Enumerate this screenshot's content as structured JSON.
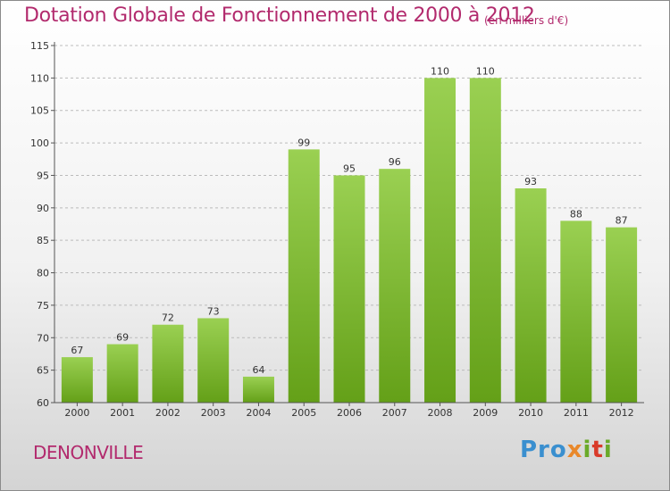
{
  "title": "Dotation Globale de Fonctionnement de 2000 à 2012",
  "subtitle": "(en milliers d'€)",
  "commune": "DENONVILLE",
  "brand": {
    "name": "Proxiti",
    "colors": [
      "#3a8fcf",
      "#e9882a",
      "#6aaa2a",
      "#d93a2a"
    ]
  },
  "colors": {
    "bar_top": "#9ad052",
    "bar_bottom": "#64a018",
    "text_accent": "#b22a6d",
    "axis": "#555555",
    "grid": "#bbbbbb"
  },
  "chart_data": {
    "type": "bar",
    "title": "Dotation Globale de Fonctionnement de 2000 à 2012",
    "subtitle": "(en milliers d'€)",
    "xlabel": "",
    "ylabel": "",
    "categories": [
      "2000",
      "2001",
      "2002",
      "2003",
      "2004",
      "2005",
      "2006",
      "2007",
      "2008",
      "2009",
      "2010",
      "2011",
      "2012"
    ],
    "values": [
      67,
      69,
      72,
      73,
      64,
      99,
      95,
      96,
      110,
      110,
      93,
      88,
      87
    ],
    "data_labels": [
      "67",
      "69",
      "72",
      "73",
      "64",
      "99",
      "95",
      "96",
      "110",
      "110",
      "93",
      "88",
      "87"
    ],
    "ylim": [
      60,
      115
    ],
    "yticks": [
      60,
      65,
      70,
      75,
      80,
      85,
      90,
      95,
      100,
      105,
      110,
      115
    ],
    "grid": "horizontal dashed",
    "legend": "none"
  }
}
